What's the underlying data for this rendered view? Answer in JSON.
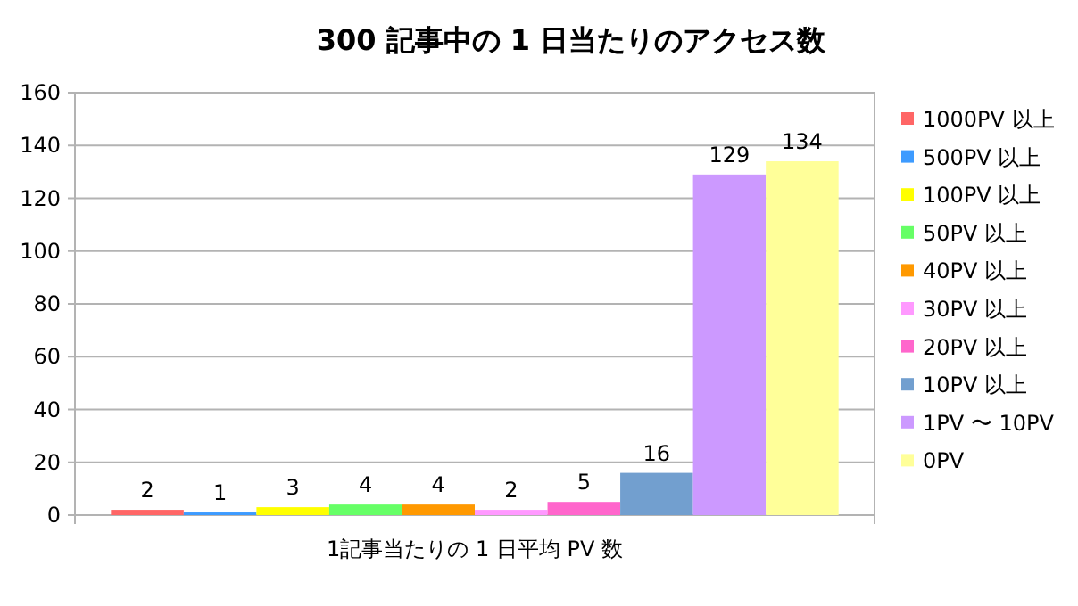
{
  "chart_data": {
    "type": "bar",
    "title": "300 記事中の 1 日当たりのアクセス数",
    "categories": [
      "1記事当たりの 1 日平均 PV 数"
    ],
    "series": [
      {
        "name": "1000PV 以上",
        "color": "#ff6666",
        "values": [
          2
        ]
      },
      {
        "name": "500PV 以上",
        "color": "#3d9bff",
        "values": [
          1
        ]
      },
      {
        "name": "100PV 以上",
        "color": "#ffff00",
        "values": [
          3
        ]
      },
      {
        "name": "50PV 以上",
        "color": "#66ff66",
        "values": [
          4
        ]
      },
      {
        "name": "40PV 以上",
        "color": "#ff9900",
        "values": [
          4
        ]
      },
      {
        "name": "30PV 以上",
        "color": "#ff99ff",
        "values": [
          2
        ]
      },
      {
        "name": "20PV 以上",
        "color": "#ff66cc",
        "values": [
          5
        ]
      },
      {
        "name": "10PV 以上",
        "color": "#729fcf",
        "values": [
          16
        ]
      },
      {
        "name": "1PV 〜 10PV",
        "color": "#cc99ff",
        "values": [
          129
        ]
      },
      {
        "name": "0PV",
        "color": "#ffff99",
        "values": [
          134
        ]
      }
    ],
    "ylim": [
      0,
      160
    ],
    "yticks": [
      0,
      20,
      40,
      60,
      80,
      100,
      120,
      140,
      160
    ],
    "grid": "y",
    "legend": "right",
    "data_labels": true
  }
}
